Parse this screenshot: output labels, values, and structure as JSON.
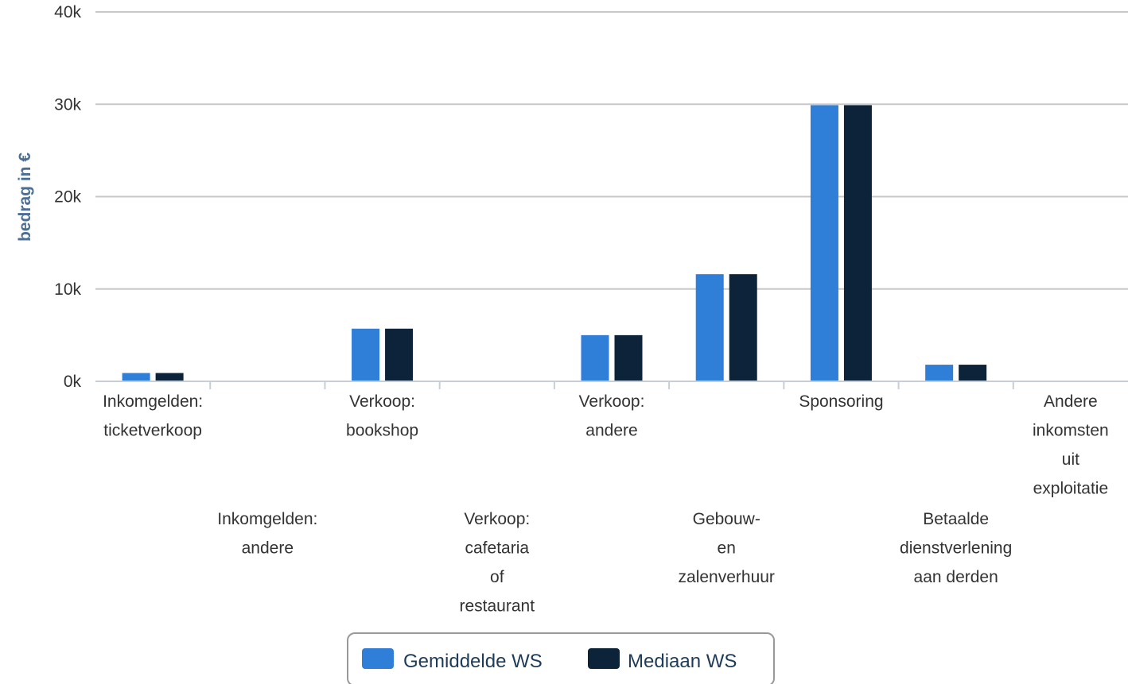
{
  "chart_data": {
    "type": "bar",
    "categories": [
      "Inkomgelden: ticketverkoop",
      "Inkomgelden: andere",
      "Verkoop: bookshop",
      "Verkoop: cafetaria of restaurant",
      "Verkoop: andere",
      "Gebouw- en zalenverhuur",
      "Sponsoring",
      "Betaalde dienstverlening aan derden",
      "Andere inkomsten uit exploitatie"
    ],
    "category_label_lines": [
      [
        "Inkomgelden:",
        "ticketverkoop"
      ],
      [
        "Inkomgelden:",
        "andere"
      ],
      [
        "Verkoop:",
        "bookshop"
      ],
      [
        "Verkoop:",
        "cafetaria",
        "of",
        "restaurant"
      ],
      [
        "Verkoop:",
        "andere"
      ],
      [
        "Gebouw-",
        "en",
        "zalenverhuur"
      ],
      [
        "Sponsoring"
      ],
      [
        "Betaalde",
        "dienstverlening",
        "aan derden"
      ],
      [
        "Andere",
        "inkomsten",
        "uit",
        "exploitatie"
      ]
    ],
    "series": [
      {
        "name": "Gemiddelde WS",
        "color": "#2f7ed8",
        "values": [
          900,
          0,
          5700,
          0,
          5000,
          11600,
          29900,
          1800,
          0
        ]
      },
      {
        "name": "Mediaan WS",
        "color": "#0d233a",
        "values": [
          900,
          0,
          5700,
          0,
          5000,
          11600,
          29900,
          1800,
          0
        ]
      }
    ],
    "ylabel": "bedrag in €",
    "xlabel": "",
    "title": "",
    "ylim": [
      0,
      40000
    ],
    "yticks": [
      0,
      10000,
      20000,
      30000,
      40000
    ],
    "ytick_labels": [
      "0k",
      "10k",
      "20k",
      "30k",
      "40k"
    ],
    "grid": true,
    "legend_position": "bottom-center"
  }
}
